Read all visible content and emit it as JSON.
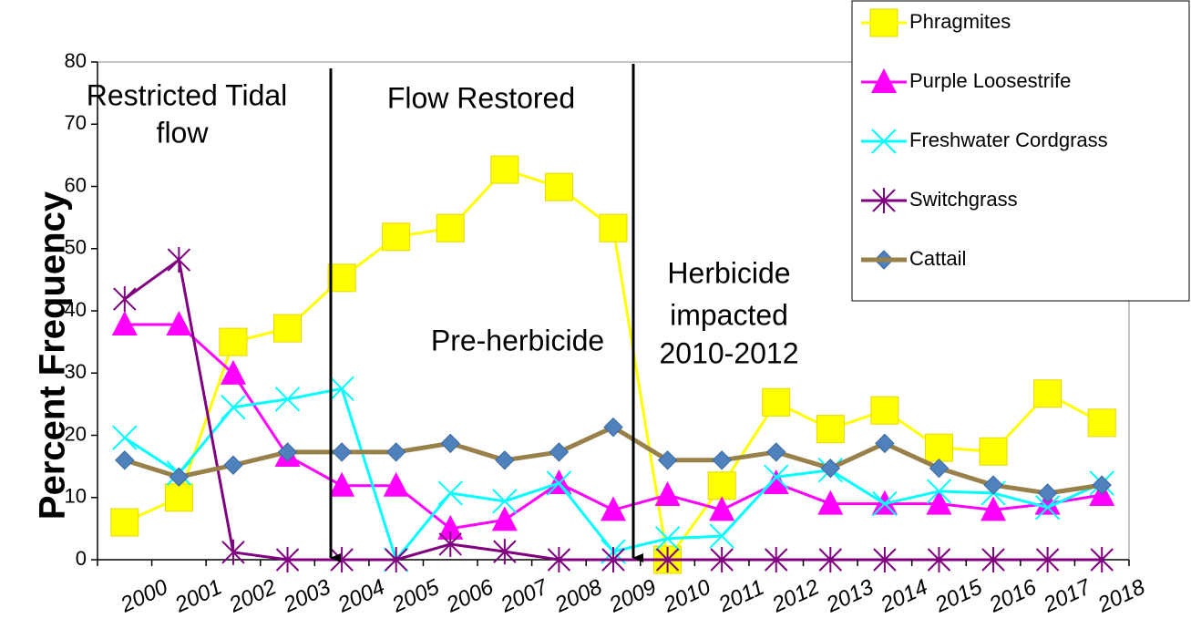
{
  "chart_data": {
    "type": "line",
    "y_label": "Percent Frequency",
    "categories": [
      "2000",
      "2001",
      "2002",
      "2003",
      "2004",
      "2005",
      "2006",
      "2007",
      "2008",
      "2009",
      "2010",
      "2011",
      "2012",
      "2013",
      "2014",
      "2015",
      "2016",
      "2017",
      "2018"
    ],
    "ylim": [
      0,
      80
    ],
    "yticks": [
      0,
      10,
      20,
      30,
      40,
      50,
      60,
      70,
      80
    ],
    "grid": false,
    "legend": "upper right",
    "annotations": [
      "Restricted Tidal",
      "flow",
      "Flow Restored",
      "Pre-herbicide",
      "Herbicide",
      "impacted",
      "2010-2012"
    ],
    "series": [
      {
        "name": "Phragmites",
        "color": "#ffff00",
        "marker": "square",
        "marker_color": "#ffff00",
        "values": [
          6,
          10,
          35,
          37.2,
          45.3,
          51.9,
          53.3,
          62.7,
          59.9,
          53.3,
          0,
          11.9,
          25.3,
          21,
          24,
          18,
          17.4,
          26.7,
          22
        ]
      },
      {
        "name": "Purple Loosestrife",
        "color": "#ff00ff",
        "marker": "triangle",
        "marker_color": "#ff00ff",
        "values": [
          37.8,
          37.8,
          29.9,
          16.7,
          11.9,
          11.9,
          5,
          6.4,
          12.3,
          8,
          10.4,
          8,
          12.3,
          9,
          9,
          9,
          8,
          9,
          10.4
        ]
      },
      {
        "name": "Freshwater Cordgrass",
        "color": "#00ffff",
        "marker": "x",
        "marker_color": "#00ffff",
        "values": [
          19.6,
          13.9,
          24.5,
          25.8,
          27.5,
          0,
          10.7,
          9.4,
          12.3,
          1.3,
          3.4,
          3.8,
          13.3,
          14.4,
          9,
          11,
          10.7,
          8.4,
          12.3
        ]
      },
      {
        "name": "Switchgrass",
        "color": "#800080",
        "marker": "star",
        "marker_color": "#800080",
        "values": [
          41.9,
          48.2,
          1.2,
          0,
          0,
          0,
          2.5,
          1.3,
          0,
          0,
          0,
          0,
          0,
          0,
          0,
          0,
          0,
          0,
          0
        ]
      },
      {
        "name": "Cattail",
        "color": "#98804a",
        "marker": "diamond",
        "marker_color": "#4f81bd",
        "values": [
          16,
          13.3,
          15.2,
          17.3,
          17.3,
          17.3,
          18.7,
          16,
          17.3,
          21.3,
          16,
          16,
          17.3,
          14.7,
          18.7,
          14.7,
          12,
          10.7,
          12
        ]
      }
    ]
  }
}
